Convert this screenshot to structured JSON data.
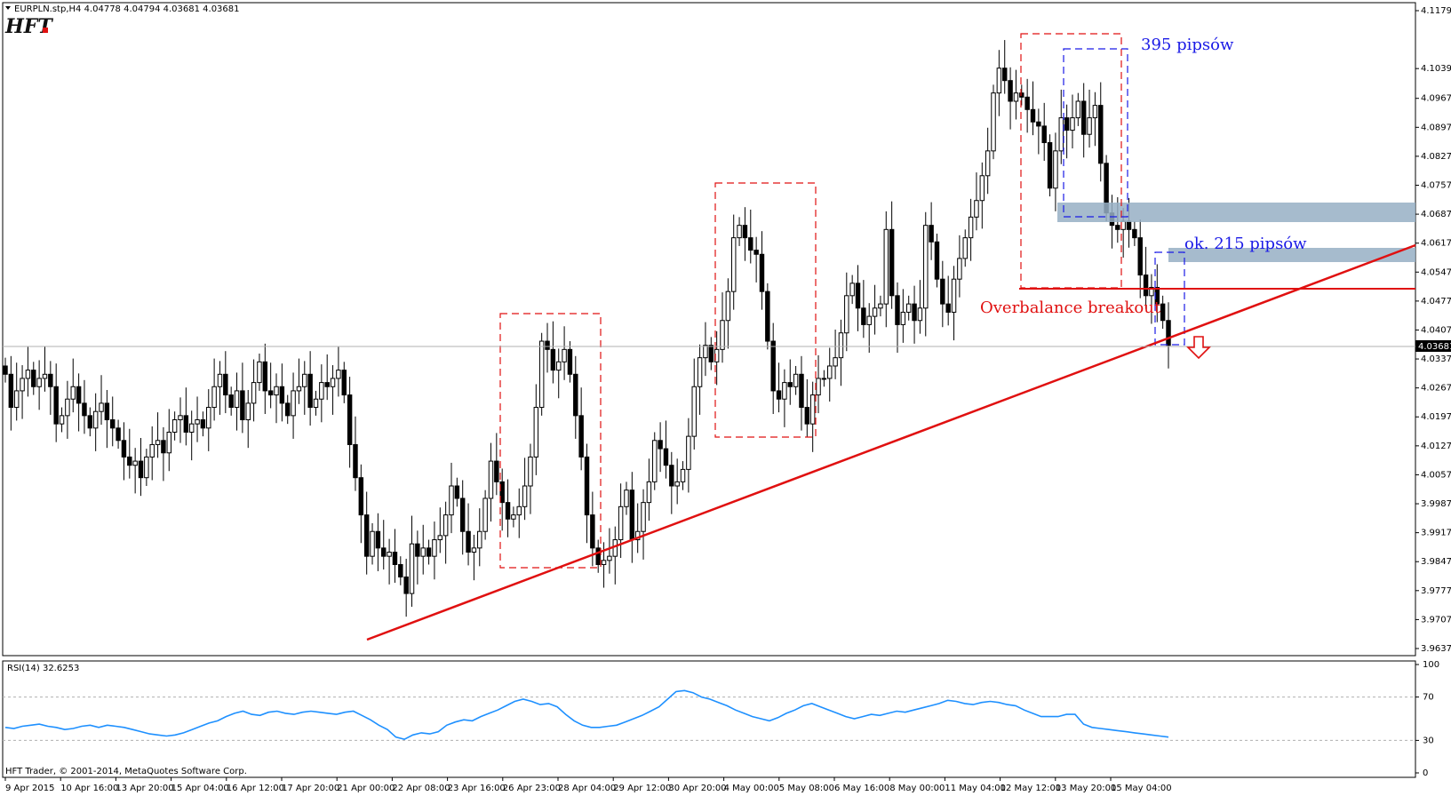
{
  "window": {
    "header": "EURPLN.stp,H4  4.04778 4.04794 4.03681 4.03681",
    "logo_text": "HFT",
    "copyright": "HFT Trader, © 2001-2014, MetaQuotes Software Corp."
  },
  "chart_data": [
    {
      "type": "candlestick",
      "symbol": "EURPLN.stp",
      "timeframe": "H4",
      "ohlc_header": {
        "open": 4.04778,
        "high": 4.04794,
        "low": 4.03681,
        "close": 4.03681
      },
      "current_price": 4.03681,
      "current_price_label": "4.03681",
      "ylim": [
        3.9637,
        4.1179
      ],
      "y_ticks": [
        "4.11790",
        "4.10390",
        "4.09670",
        "4.08970",
        "4.08270",
        "4.07570",
        "4.06870",
        "4.06170",
        "4.05470",
        "4.04770",
        "4.04070",
        "4.03370",
        "4.02670",
        "4.01970",
        "4.01270",
        "4.00570",
        "3.99870",
        "3.99170",
        "3.98470",
        "3.97770",
        "3.97070",
        "3.96370"
      ],
      "x_ticks": [
        "9 Apr 2015",
        "10 Apr 16:00",
        "13 Apr 20:00",
        "15 Apr 04:00",
        "16 Apr 12:00",
        "17 Apr 20:00",
        "21 Apr 00:00",
        "22 Apr 08:00",
        "23 Apr 16:00",
        "26 Apr 23:00",
        "28 Apr 04:00",
        "29 Apr 12:00",
        "30 Apr 20:00",
        "4 May 00:00",
        "5 May 08:00",
        "6 May 16:00",
        "8 May 00:00",
        "11 May 04:00",
        "12 May 12:00",
        "13 May 20:00",
        "15 May 04:00"
      ],
      "closes": [
        4.03,
        4.022,
        4.026,
        4.029,
        4.031,
        4.027,
        4.029,
        4.03,
        4.027,
        4.018,
        4.02,
        4.024,
        4.027,
        4.023,
        4.02,
        4.017,
        4.021,
        4.023,
        4.019,
        4.017,
        4.014,
        4.01,
        4.008,
        4.009,
        4.005,
        4.01,
        4.013,
        4.014,
        4.011,
        4.016,
        4.019,
        4.02,
        4.016,
        4.018,
        4.019,
        4.017,
        4.022,
        4.027,
        4.03,
        4.025,
        4.022,
        4.026,
        4.019,
        4.023,
        4.028,
        4.033,
        4.026,
        4.025,
        4.027,
        4.023,
        4.02,
        4.026,
        4.027,
        4.03,
        4.022,
        4.024,
        4.028,
        4.027,
        4.029,
        4.031,
        4.025,
        4.013,
        4.005,
        3.996,
        3.986,
        3.992,
        3.988,
        3.986,
        3.987,
        3.984,
        3.981,
        3.977,
        3.989,
        3.986,
        3.988,
        3.986,
        3.99,
        3.991,
        3.996,
        4.003,
        4.0,
        3.992,
        3.987,
        3.988,
        3.992,
        4.0,
        4.009,
        4.004,
        3.999,
        3.995,
        3.996,
        3.998,
        4.003,
        4.01,
        4.022,
        4.038,
        4.036,
        4.031,
        4.033,
        4.036,
        4.03,
        4.02,
        4.01,
        3.996,
        3.988,
        3.984,
        3.985,
        3.986,
        3.99,
        3.998,
        4.002,
        3.99,
        3.992,
        3.999,
        4.004,
        4.014,
        4.012,
        4.008,
        4.003,
        4.004,
        4.007,
        4.015,
        4.027,
        4.034,
        4.037,
        4.033,
        4.036,
        4.043,
        4.05,
        4.063,
        4.066,
        4.063,
        4.06,
        4.059,
        4.05,
        4.038,
        4.026,
        4.024,
        4.028,
        4.027,
        4.03,
        4.022,
        4.018,
        4.025,
        4.029,
        4.029,
        4.032,
        4.034,
        4.04,
        4.049,
        4.052,
        4.046,
        4.042,
        4.044,
        4.046,
        4.047,
        4.065,
        4.049,
        4.042,
        4.045,
        4.047,
        4.043,
        4.046,
        4.066,
        4.062,
        4.053,
        4.047,
        4.045,
        4.053,
        4.058,
        4.063,
        4.068,
        4.072,
        4.078,
        4.084,
        4.098,
        4.104,
        4.101,
        4.096,
        4.098,
        4.097,
        4.094,
        4.091,
        4.09,
        4.086,
        4.075,
        4.084,
        4.092,
        4.089,
        4.092,
        4.096,
        4.088,
        4.092,
        4.095,
        4.081,
        4.069,
        4.066,
        4.065,
        4.067,
        4.065,
        4.063,
        4.054,
        4.049,
        4.051,
        4.047,
        4.043,
        4.037
      ]
    },
    {
      "type": "line",
      "title": "RSI(14) 32.6253",
      "ylim": [
        0,
        100
      ],
      "y_ticks": [
        "100",
        "70",
        "30",
        "0"
      ],
      "levels": [
        30,
        70
      ],
      "last_value": 32.6253,
      "values": [
        42,
        41,
        43,
        44,
        45,
        43,
        42,
        40,
        41,
        43,
        44,
        42,
        44,
        43,
        42,
        40,
        38,
        36,
        35,
        34,
        35,
        37,
        40,
        43,
        46,
        48,
        52,
        55,
        57,
        54,
        53,
        56,
        57,
        55,
        54,
        56,
        57,
        56,
        55,
        54,
        56,
        57,
        53,
        49,
        44,
        40,
        33,
        31,
        35,
        37,
        36,
        38,
        44,
        47,
        49,
        48,
        52,
        55,
        58,
        62,
        66,
        68,
        66,
        63,
        64,
        61,
        54,
        48,
        44,
        42,
        42,
        43,
        44,
        47,
        50,
        53,
        57,
        61,
        68,
        75,
        76,
        74,
        70,
        68,
        65,
        62,
        58,
        55,
        52,
        50,
        48,
        51,
        55,
        58,
        62,
        64,
        61,
        58,
        55,
        52,
        50,
        52,
        54,
        53,
        55,
        57,
        56,
        58,
        60,
        62,
        64,
        67,
        66,
        64,
        63,
        65,
        66,
        65,
        63,
        62,
        58,
        55,
        52,
        52,
        52,
        54,
        54,
        45,
        42,
        41,
        40,
        39,
        38,
        37,
        36,
        35,
        34,
        33
      ]
    }
  ],
  "annotations": {
    "pips_395": "395 pipsów",
    "pips_215": "ok. 215 pipsów",
    "breakout": "Overbalance breakout"
  }
}
